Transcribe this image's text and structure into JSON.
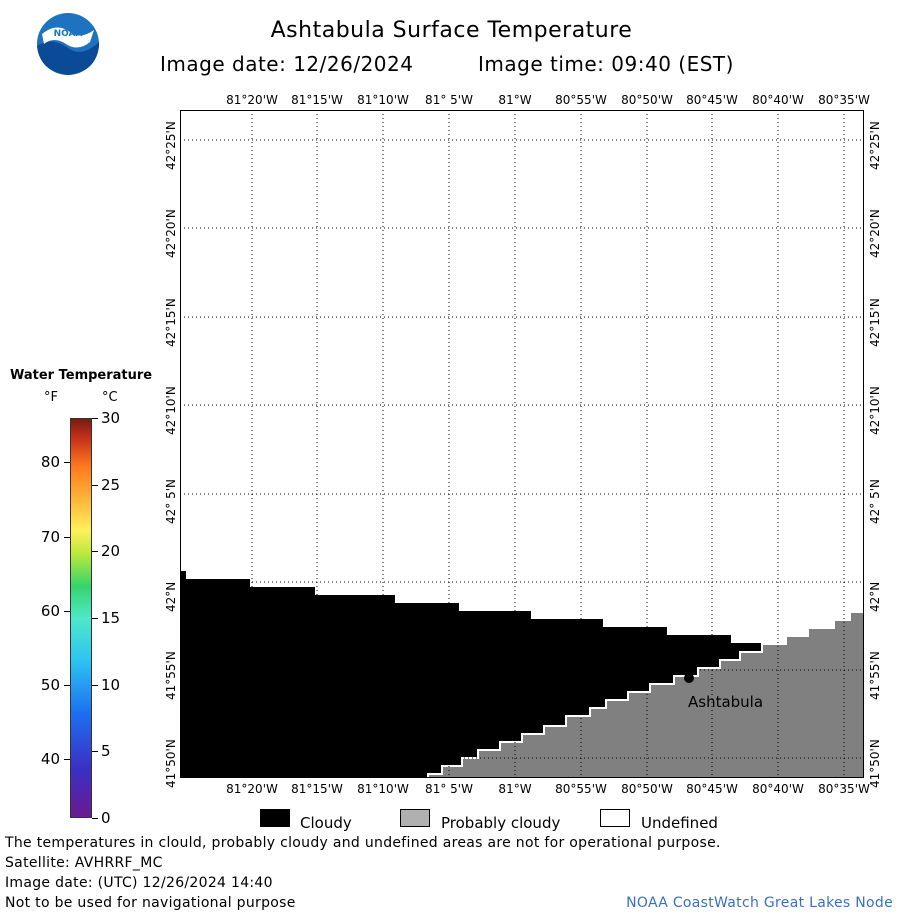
{
  "header": {
    "title": "Ashtabula Surface Temperature",
    "image_date": "Image date: 12/26/2024",
    "image_time": "Image time: 09:40 (EST)",
    "logo_text": "NOAA"
  },
  "map": {
    "lon_labels": [
      "81°20'W",
      "81°15'W",
      "81°10'W",
      "81° 5'W",
      "81°W",
      "80°55'W",
      "80°50'W",
      "80°45'W",
      "80°40'W",
      "80°35'W"
    ],
    "lat_labels": [
      "42°25'N",
      "42°20'N",
      "42°15'N",
      "42°10'N",
      "42° 5'N",
      "42°N",
      "41°55'N",
      "41°50'N"
    ],
    "city_label": "Ashtabula",
    "colors": {
      "cloudy": "#000000",
      "probably_cloudy": "#808080",
      "undefined": "#ffffff",
      "grid": "#000000"
    }
  },
  "legend": {
    "title": "Water Temperature",
    "unit_f": "°F",
    "unit_c": "°C",
    "f_ticks": [
      "80",
      "70",
      "60",
      "50",
      "40"
    ],
    "c_ticks": [
      "30",
      "25",
      "20",
      "15",
      "10",
      "5",
      "0"
    ]
  },
  "key": {
    "cloudy": "Cloudy",
    "probably_cloudy": "Probably cloudy",
    "undefined": "Undefined"
  },
  "footer": {
    "line1": "The temperatures in clould, probably cloudy and undefined areas are not for operational purpose.",
    "line2": "Satellite: AVHRRF_MC",
    "line3": "Image date: (UTC) 12/26/2024  14:40",
    "line4": "Not to be used for navigational purpose",
    "credit": "NOAA CoastWatch Great Lakes Node"
  }
}
